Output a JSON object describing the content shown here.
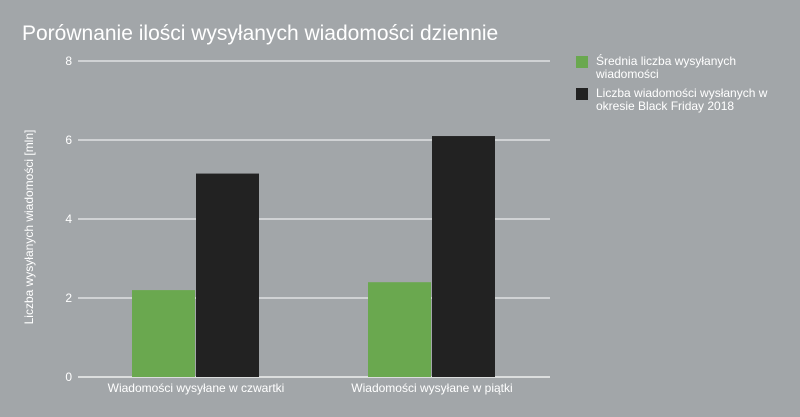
{
  "chart_data": {
    "type": "bar",
    "title": "Porównanie ilości wysyłanych wiadomości dziennie",
    "xlabel": "",
    "ylabel": "Liczba wysyłanych wiadomości [mln]",
    "categories": [
      "Wiadomości wysyłane w czwartki",
      "Wiadomości wysyłane w piątki"
    ],
    "series": [
      {
        "name": "Średnia liczba wysyłanych wiadomości",
        "values": [
          2.2,
          2.4
        ],
        "color": "#6aa84f"
      },
      {
        "name": "Liczba wiadomości wysłanych w okresie Black Friday 2018",
        "values": [
          5.15,
          6.1
        ],
        "color": "#222222"
      }
    ],
    "ylim": [
      0,
      8
    ],
    "yticks": [
      "0",
      "2",
      "4",
      "6",
      "8"
    ],
    "grid": true,
    "legend_position": "right",
    "colors": {
      "background": "#a2a6a9",
      "gridline": "#ffffff",
      "text": "#ffffff"
    }
  }
}
